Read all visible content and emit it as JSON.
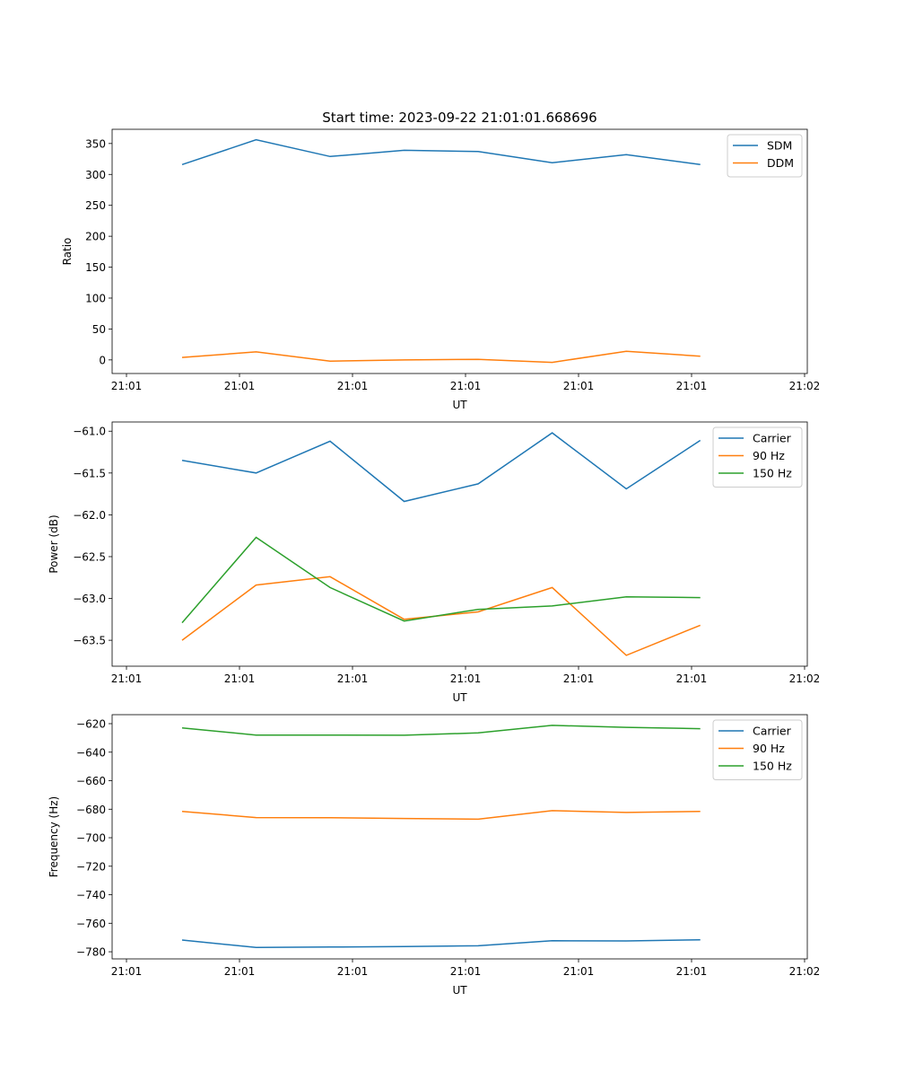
{
  "chart_data": [
    {
      "type": "line",
      "title": "Start time: 2023-09-22 21:01:01.668696",
      "xlabel": "UT",
      "ylabel": "Ratio",
      "x": [
        4.92,
        11.47,
        18.02,
        24.57,
        31.12,
        37.67,
        44.22,
        50.77
      ],
      "xlim": [
        -1.27,
        60.24
      ],
      "xticks": [
        0,
        10,
        20,
        30,
        40,
        50,
        60
      ],
      "xtick_labels": [
        "21:01",
        "21:01",
        "21:01",
        "21:01",
        "21:01",
        "21:01",
        "21:02"
      ],
      "ylim": [
        -22,
        373
      ],
      "yticks": [
        0,
        50,
        100,
        150,
        200,
        250,
        300,
        350
      ],
      "ytick_labels": [
        "0",
        "50",
        "100",
        "150",
        "200",
        "250",
        "300",
        "350"
      ],
      "legend": "top-right",
      "series": [
        {
          "name": "SDM",
          "color": "#1f77b4",
          "values": [
            316,
            356,
            329,
            339,
            337,
            319,
            332,
            316
          ]
        },
        {
          "name": "DDM",
          "color": "#ff7f0e",
          "values": [
            4,
            13,
            -2,
            0,
            1,
            -4,
            14,
            6
          ]
        }
      ]
    },
    {
      "type": "line",
      "title": "",
      "xlabel": "UT",
      "ylabel": "Power (dB)",
      "x": [
        4.92,
        11.47,
        18.02,
        24.57,
        31.12,
        37.67,
        44.22,
        50.77
      ],
      "xlim": [
        -1.27,
        60.24
      ],
      "xticks": [
        0,
        10,
        20,
        30,
        40,
        50,
        60
      ],
      "xtick_labels": [
        "21:01",
        "21:01",
        "21:01",
        "21:01",
        "21:01",
        "21:01",
        "21:02"
      ],
      "ylim": [
        -63.81,
        -60.89
      ],
      "yticks": [
        -63.5,
        -63.0,
        -62.5,
        -62.0,
        -61.5,
        -61.0
      ],
      "ytick_labels": [
        "−63.5",
        "−63.0",
        "−62.5",
        "−62.0",
        "−61.5",
        "−61.0"
      ],
      "legend": "top-right",
      "series": [
        {
          "name": "Carrier",
          "color": "#1f77b4",
          "values": [
            -61.35,
            -61.5,
            -61.12,
            -61.84,
            -61.63,
            -61.02,
            -61.69,
            -61.11
          ]
        },
        {
          "name": "90 Hz",
          "color": "#ff7f0e",
          "values": [
            -63.5,
            -62.84,
            -62.74,
            -63.25,
            -63.16,
            -62.87,
            -63.68,
            -63.32
          ]
        },
        {
          "name": "150 Hz",
          "color": "#2ca02c",
          "values": [
            -63.29,
            -62.27,
            -62.87,
            -63.27,
            -63.13,
            -63.09,
            -62.98,
            -62.99
          ]
        }
      ]
    },
    {
      "type": "line",
      "title": "",
      "xlabel": "UT",
      "ylabel": "Frequency (Hz)",
      "x": [
        4.92,
        11.47,
        18.02,
        24.57,
        31.12,
        37.67,
        44.22,
        50.77
      ],
      "xlim": [
        -1.27,
        60.24
      ],
      "xticks": [
        0,
        10,
        20,
        30,
        40,
        50,
        60
      ],
      "xtick_labels": [
        "21:01",
        "21:01",
        "21:01",
        "21:01",
        "21:01",
        "21:01",
        "21:02"
      ],
      "ylim": [
        -785,
        -613.7
      ],
      "yticks": [
        -780,
        -760,
        -740,
        -720,
        -700,
        -680,
        -660,
        -640,
        -620
      ],
      "ytick_labels": [
        "−780",
        "−760",
        "−740",
        "−720",
        "−700",
        "−680",
        "−660",
        "−640",
        "−620"
      ],
      "legend": "top-right",
      "series": [
        {
          "name": "Carrier",
          "color": "#1f77b4",
          "values": [
            -771.8,
            -777.0,
            -776.7,
            -776.4,
            -775.8,
            -772.3,
            -772.4,
            -771.6
          ]
        },
        {
          "name": "90 Hz",
          "color": "#ff7f0e",
          "values": [
            -681.5,
            -685.9,
            -686.0,
            -686.5,
            -687.0,
            -681.0,
            -682.3,
            -681.6
          ]
        },
        {
          "name": "150 Hz",
          "color": "#2ca02c",
          "values": [
            -623.0,
            -628.0,
            -628.0,
            -628.1,
            -626.5,
            -621.2,
            -622.6,
            -623.5
          ]
        }
      ]
    }
  ]
}
